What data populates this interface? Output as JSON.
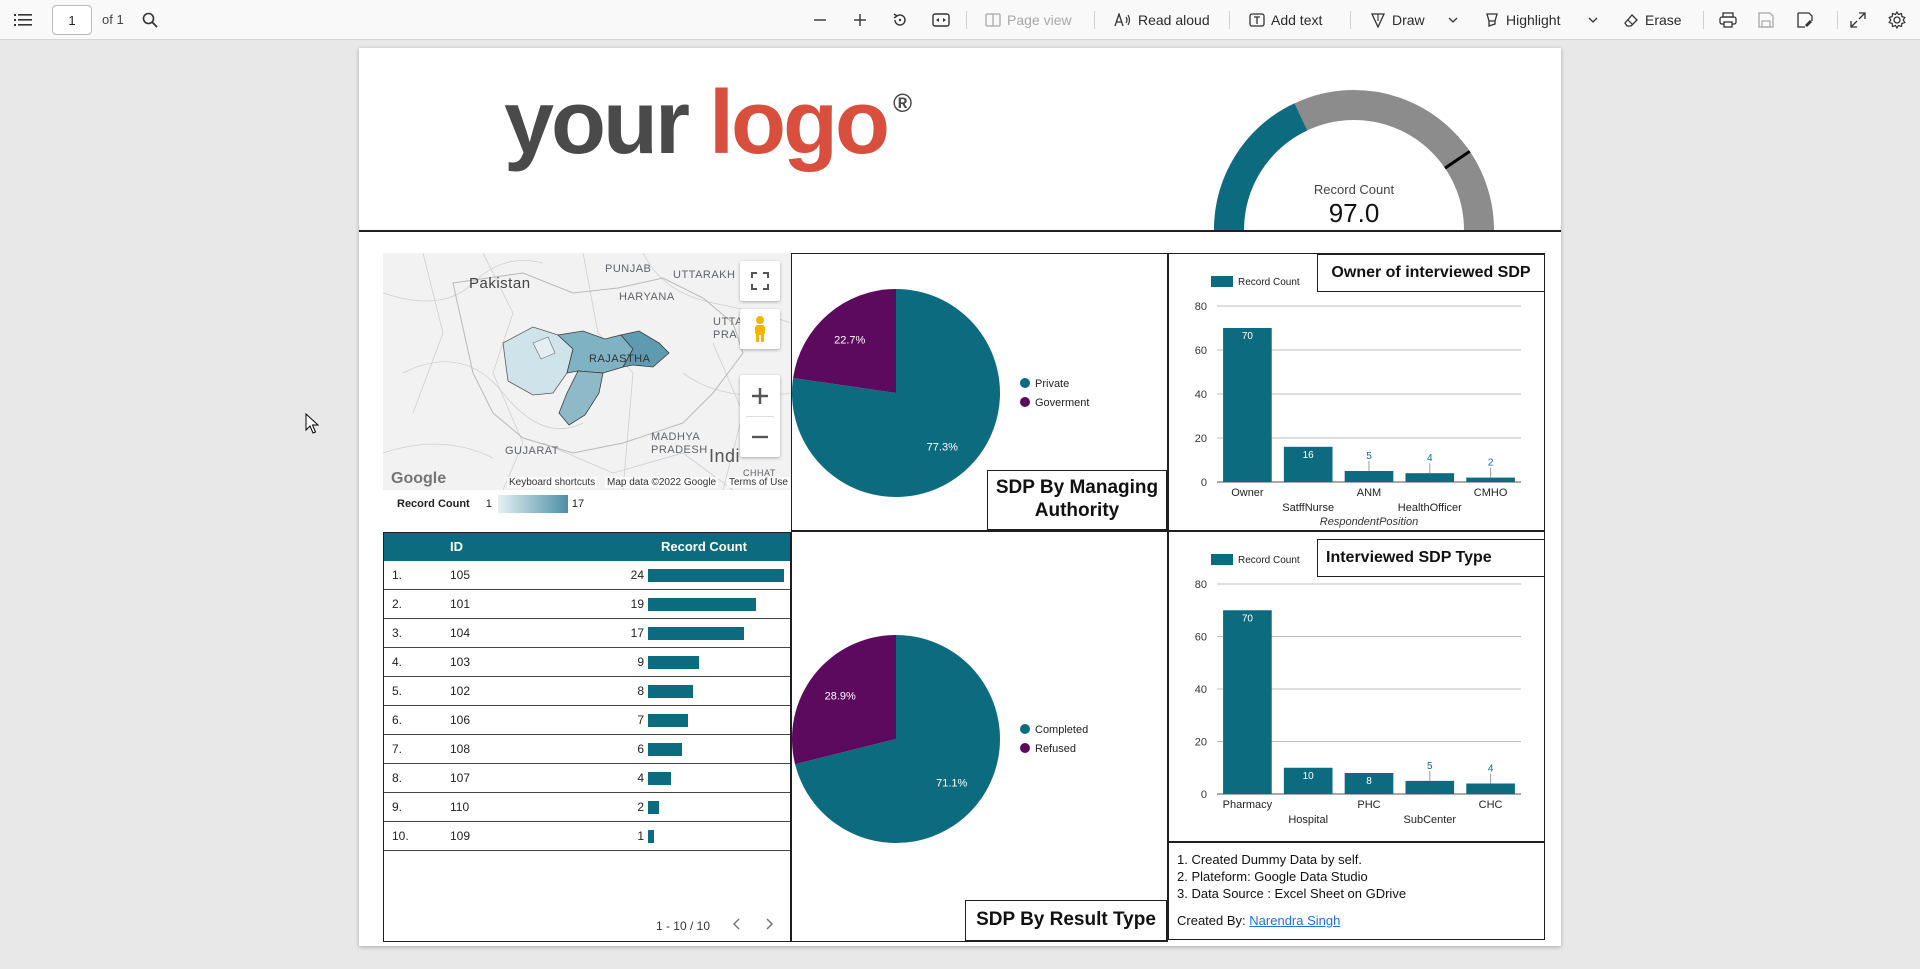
{
  "toolbar": {
    "page_number": "1",
    "page_of": "of 1",
    "page_view_label": "Page view",
    "read_aloud_label": "Read aloud",
    "add_text_label": "Add text",
    "draw_label": "Draw",
    "highlight_label": "Highlight",
    "erase_label": "Erase"
  },
  "logo": {
    "word1": "your",
    "word2": "logo",
    "mark": "®"
  },
  "gauge": {
    "label": "Record Count",
    "value": "97.0",
    "fill_fraction": 0.36,
    "target_fraction": 0.81,
    "fill_color": "#0d6b80",
    "track_color": "#8c8c8c"
  },
  "map": {
    "labels": {
      "pakistan": "Pakistan",
      "punjab": "PUNJAB",
      "uttarakhand": "UTTARAKH",
      "haryana": "HARYANA",
      "uttar": "UTTA",
      "pradesh": "PRA",
      "rajasthan": "RAJASTHA",
      "gujarat": "GUJARAT",
      "madhya": "MADHYA",
      "madhya2": "PRADESH",
      "india": "Indi",
      "chhat": "CHHAT"
    },
    "footer": {
      "shortcuts": "Keyboard shortcuts",
      "mapdata": "Map data ©2022 Google",
      "terms": "Terms of Use",
      "google": "Google"
    },
    "legend": {
      "title": "Record Count",
      "min": "1",
      "max": "17"
    }
  },
  "table": {
    "headers": {
      "id": "ID",
      "count": "Record Count"
    },
    "rows": [
      {
        "n": "1.",
        "id": "105",
        "count": "24",
        "value": 24
      },
      {
        "n": "2.",
        "id": "101",
        "count": "19",
        "value": 19
      },
      {
        "n": "3.",
        "id": "104",
        "count": "17",
        "value": 17
      },
      {
        "n": "4.",
        "id": "103",
        "count": "9",
        "value": 9
      },
      {
        "n": "5.",
        "id": "102",
        "count": "8",
        "value": 8
      },
      {
        "n": "6.",
        "id": "106",
        "count": "7",
        "value": 7
      },
      {
        "n": "7.",
        "id": "108",
        "count": "6",
        "value": 6
      },
      {
        "n": "8.",
        "id": "107",
        "count": "4",
        "value": 4
      },
      {
        "n": "9.",
        "id": "110",
        "count": "2",
        "value": 2
      },
      {
        "n": "10.",
        "id": "109",
        "count": "1",
        "value": 1
      }
    ],
    "pager": "1 - 10 / 10"
  },
  "titles": {
    "managing": "SDP By Managing Authority",
    "result": "SDP By Result Type",
    "owner": "Owner of interviewed SDP",
    "sdptype": "Interviewed SDP Type"
  },
  "notes": {
    "line1": "1. Created Dummy Data by self.",
    "line2": "2. Plateform: Google Data Studio",
    "line3": "3. Data Source : Excel Sheet on GDrive",
    "created_by": "Created By:",
    "author": "Narendra Singh"
  },
  "colors": {
    "teal": "#0d6b80",
    "purple": "#5c0a5e"
  },
  "chart_data": [
    {
      "type": "pie",
      "title": "SDP By Managing Authority",
      "slices": [
        {
          "name": "Private",
          "value": 77.3,
          "label": "77.3%",
          "color": "#0d6b80"
        },
        {
          "name": "Goverment",
          "value": 22.7,
          "label": "22.7%",
          "color": "#5c0a5e"
        }
      ],
      "legend": "right"
    },
    {
      "type": "pie",
      "title": "SDP By Result Type",
      "slices": [
        {
          "name": "Completed",
          "value": 71.1,
          "label": "71.1%",
          "color": "#0d6b80"
        },
        {
          "name": "Refused",
          "value": 28.9,
          "label": "28.9%",
          "color": "#5c0a5e"
        }
      ],
      "legend": "right"
    },
    {
      "type": "bar",
      "title": "Owner of interviewed SDP",
      "categories": [
        "Owner",
        "SatffNurse",
        "ANM",
        "HealthOfficer",
        "CMHO"
      ],
      "values": [
        70,
        16,
        5,
        4,
        2
      ],
      "series": [
        {
          "name": "Record Count",
          "values": [
            70,
            16,
            5,
            4,
            2
          ]
        }
      ],
      "xlabel": "RespondentPosition",
      "ylim": [
        0,
        80
      ],
      "yticks": [
        0,
        20,
        40,
        60,
        80
      ],
      "grid": true,
      "legend": "top-left"
    },
    {
      "type": "bar",
      "title": "Interviewed SDP Type",
      "categories": [
        "Pharmacy",
        "Hospital",
        "PHC",
        "SubCenter",
        "CHC"
      ],
      "values": [
        70,
        10,
        8,
        5,
        4
      ],
      "series": [
        {
          "name": "Record Count",
          "values": [
            70,
            10,
            8,
            5,
            4
          ]
        }
      ],
      "xlabel": "",
      "ylim": [
        0,
        80
      ],
      "yticks": [
        0,
        20,
        40,
        60,
        80
      ],
      "grid": true,
      "legend": "top-left"
    }
  ]
}
